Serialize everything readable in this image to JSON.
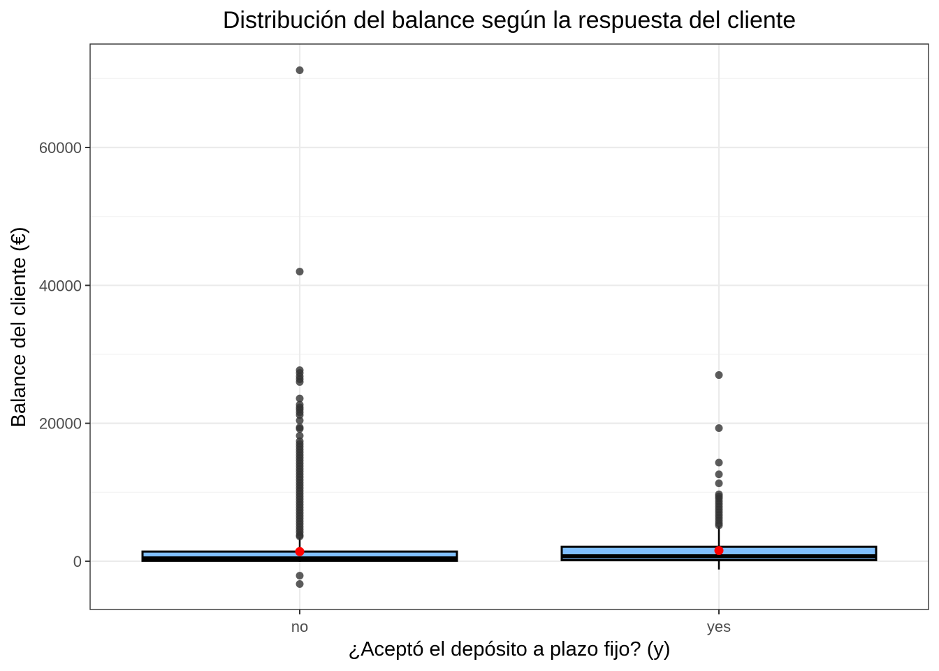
{
  "chart_data": {
    "type": "boxplot",
    "title": "Distribución del balance según la respuesta del cliente",
    "xlabel": "¿Aceptó el depósito a plazo fijo? (y)",
    "ylabel": "Balance del cliente (€)",
    "ylim": [
      -7000,
      75000
    ],
    "yticks": [
      0,
      20000,
      40000,
      60000
    ],
    "ytick_labels": [
      "0",
      "20000",
      "40000",
      "60000"
    ],
    "minor_yticks": [
      10000,
      30000,
      50000,
      70000
    ],
    "grid": true,
    "categories": [
      "no",
      "yes"
    ],
    "fill_color": "#80BFFF",
    "outlier_color": "#333333",
    "mean_color": "#FF0000",
    "boxes": [
      {
        "category": "no",
        "whisker_low": -100,
        "q1": 60,
        "median": 400,
        "q3": 1400,
        "whisker_high": 3400,
        "mean": 1400,
        "outliers": [
          71200,
          42000,
          27700,
          27300,
          26800,
          26400,
          26000,
          23600,
          22700,
          22300,
          22000,
          21600,
          21200,
          20400,
          19400,
          19200,
          18200,
          17400,
          17000,
          16600,
          16200,
          15800,
          15400,
          15000,
          14600,
          14200,
          13800,
          13400,
          13000,
          12600,
          12200,
          11800,
          11400,
          11000,
          10600,
          10200,
          9800,
          9400,
          9000,
          8600,
          8200,
          7800,
          7400,
          7000,
          6600,
          6200,
          5800,
          5400,
          5000,
          4600,
          4200,
          3800,
          3600,
          -2100,
          -3300
        ]
      },
      {
        "category": "yes",
        "whisker_low": -1200,
        "q1": 150,
        "median": 700,
        "q3": 2100,
        "whisker_high": 5100,
        "mean": 1550,
        "outliers": [
          27000,
          19300,
          14300,
          12600,
          11300,
          9700,
          9400,
          9100,
          8700,
          8300,
          7900,
          7500,
          7100,
          6700,
          6300,
          5900,
          5500,
          5200
        ]
      }
    ]
  }
}
